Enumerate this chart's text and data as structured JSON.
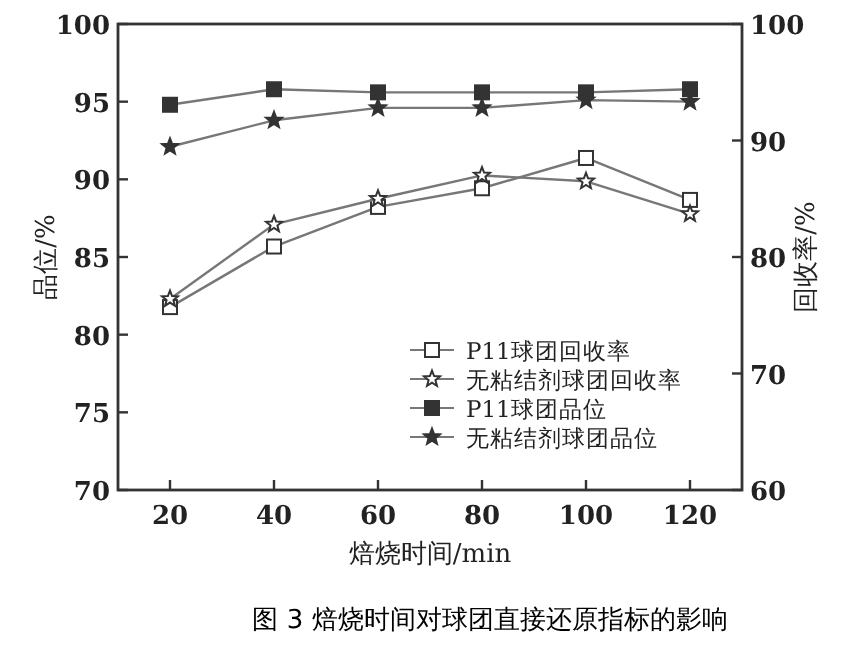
{
  "chart_data": {
    "type": "line",
    "xlabel": "焙烧时间/min",
    "ylabel": "品位/%",
    "y2label": "回收率/%",
    "x": [
      20,
      40,
      60,
      80,
      100,
      120
    ],
    "xlim": [
      10,
      130
    ],
    "xticks": [
      20,
      40,
      60,
      80,
      100,
      120
    ],
    "ylim": [
      70,
      100
    ],
    "yticks": [
      70,
      75,
      80,
      85,
      90,
      95,
      100
    ],
    "y2lim": [
      60,
      100
    ],
    "y2ticks": [
      60,
      70,
      80,
      90,
      100
    ],
    "series": [
      {
        "name": "P11球团回收率",
        "color": "#333333",
        "axis": "y2",
        "marker": "square",
        "values": [
          75.7,
          80.9,
          84.3,
          85.9,
          88.5,
          84.9
        ]
      },
      {
        "name": "无粘结剂球团回收率",
        "color": "#333333",
        "axis": "y2",
        "marker": "star",
        "values": [
          76.4,
          82.8,
          85.0,
          87.0,
          86.5,
          83.7
        ]
      },
      {
        "name": "P11球团品位",
        "color": "#333333",
        "marker": "square",
        "values": [
          94.8,
          95.8,
          95.6,
          95.6,
          95.6,
          95.8
        ]
      },
      {
        "name": "无粘结剂球团品位",
        "color": "#333333",
        "marker": "star",
        "values": [
          92.1,
          93.8,
          94.6,
          94.6,
          95.1,
          95.0
        ]
      }
    ],
    "legend": "bottom",
    "grid": false,
    "annotations": [
      "图 3  焙烧时间对球团直接还原指标的影响"
    ]
  }
}
